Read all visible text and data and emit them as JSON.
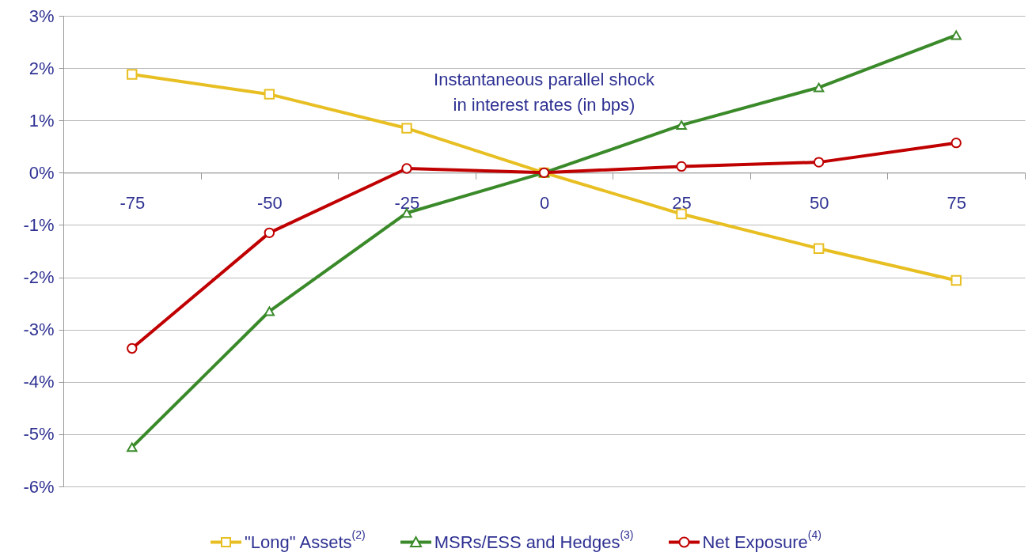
{
  "chart_data": {
    "type": "line",
    "xlabel": "Instantaneous parallel shock\nin interest rates (in bps)",
    "categories": [
      "-75",
      "-50",
      "-25",
      "0",
      "25",
      "50",
      "75"
    ],
    "series": [
      {
        "name": "\"Long\" Assets$^{(2)}$",
        "color": "#e8bf22",
        "marker": "square",
        "values": [
          1.88,
          1.5,
          0.85,
          0,
          -0.79,
          -1.45,
          -2.06
        ]
      },
      {
        "name": "MSRs/ESS and Hedges$^{(3)}$",
        "color": "#3a8a2a",
        "marker": "triangle",
        "values": [
          -5.25,
          -2.65,
          -0.77,
          0,
          0.91,
          1.63,
          2.63
        ]
      },
      {
        "name": "Net Exposure$^{(4)}$",
        "color": "#c00000",
        "marker": "circle",
        "values": [
          -3.36,
          -1.15,
          0.08,
          0,
          0.12,
          0.2,
          0.57
        ]
      }
    ],
    "ylim": [
      -6,
      3
    ],
    "yticks": [
      {
        "value": -6,
        "label": "-6%"
      },
      {
        "value": -5,
        "label": "-5%"
      },
      {
        "value": -4,
        "label": "-4%"
      },
      {
        "value": -3,
        "label": "-3%"
      },
      {
        "value": -2,
        "label": "-2%"
      },
      {
        "value": -1,
        "label": "-1%"
      },
      {
        "value": 0,
        "label": "0%"
      },
      {
        "value": 1,
        "label": "1%"
      },
      {
        "value": 2,
        "label": "2%"
      },
      {
        "value": 3,
        "label": "3%"
      }
    ],
    "grid": "y",
    "legend": "bottom"
  }
}
